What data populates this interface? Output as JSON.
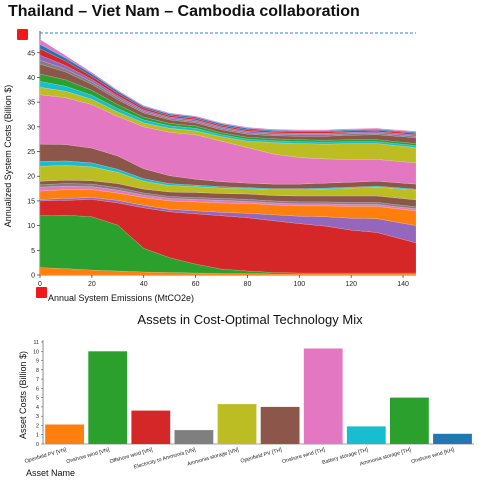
{
  "page": {
    "title": "Thailand – Viet Nam – Cambodia collaboration",
    "accent": "#f01818"
  },
  "chart_data": [
    {
      "type": "area",
      "xlabel": "Annual System Emissions (MtCO2e)",
      "ylabel": "Annualized System Costs (Billion $)",
      "xlim": [
        0,
        145
      ],
      "ylim": [
        0,
        49
      ],
      "xticks": [
        0,
        20,
        40,
        60,
        80,
        100,
        120,
        140
      ],
      "yticks": [
        0,
        5,
        10,
        15,
        20,
        25,
        30,
        35,
        40,
        45
      ],
      "reference_line": {
        "y": 49,
        "color": "#3a7fd0",
        "style": "dashed"
      },
      "x": [
        0,
        10,
        20,
        30,
        40,
        50,
        60,
        70,
        80,
        90,
        100,
        110,
        120,
        130,
        145
      ],
      "series": [
        {
          "color": "#ff7f0e",
          "values": [
            1.5,
            1.3,
            1.0,
            0.8,
            0.6,
            0.5,
            0.4,
            0.3,
            0.3,
            0.2,
            0.2,
            0.2,
            0.2,
            0.2,
            0.2
          ]
        },
        {
          "color": "#2ca02c",
          "values": [
            10.5,
            10.8,
            10.8,
            9.3,
            4.8,
            3.0,
            1.8,
            0.9,
            0.5,
            0.3,
            0.2,
            0.2,
            0.2,
            0.2,
            0.2
          ]
        },
        {
          "color": "#d62728",
          "values": [
            3.0,
            3.0,
            3.5,
            4.5,
            8.2,
            9.3,
            10.2,
            10.8,
            10.8,
            10.5,
            10.0,
            9.5,
            8.7,
            8.2,
            6.1
          ]
        },
        {
          "color": "#9467bd",
          "values": [
            0.3,
            0.4,
            0.4,
            0.5,
            0.5,
            0.5,
            0.6,
            0.7,
            0.9,
            1.2,
            1.5,
            1.9,
            2.4,
            2.8,
            3.5
          ]
        },
        {
          "color": "#ff7f0e",
          "values": [
            1.7,
            1.8,
            1.6,
            1.5,
            1.6,
            1.7,
            1.8,
            1.9,
            2.0,
            2.0,
            2.1,
            2.2,
            2.4,
            2.5,
            3.0
          ]
        },
        {
          "color": "#e377c2",
          "values": [
            0.8,
            0.7,
            0.6,
            0.6,
            0.5,
            0.5,
            0.5,
            0.5,
            0.4,
            0.4,
            0.4,
            0.4,
            0.4,
            0.4,
            0.4
          ]
        },
        {
          "color": "#7f7f7f",
          "values": [
            0.5,
            0.5,
            0.5,
            0.5,
            0.4,
            0.4,
            0.4,
            0.4,
            0.4,
            0.4,
            0.4,
            0.4,
            0.4,
            0.4,
            0.4
          ]
        },
        {
          "color": "#8c564b",
          "values": [
            0.7,
            0.7,
            0.7,
            0.8,
            0.8,
            0.9,
            1.0,
            1.0,
            1.1,
            1.1,
            1.2,
            1.2,
            1.3,
            1.3,
            1.4
          ]
        },
        {
          "color": "#bcbd22",
          "values": [
            3.0,
            3.0,
            2.8,
            2.3,
            1.6,
            1.3,
            1.2,
            1.1,
            1.1,
            1.2,
            1.3,
            1.4,
            1.6,
            1.8,
            2.0
          ]
        },
        {
          "color": "#17becf",
          "values": [
            1.0,
            0.9,
            0.8,
            0.6,
            0.5,
            0.4,
            0.3,
            0.3,
            0.2,
            0.2,
            0.2,
            0.2,
            0.2,
            0.2,
            0.2
          ]
        },
        {
          "color": "#8c564b",
          "values": [
            3.5,
            3.3,
            3.0,
            2.7,
            2.0,
            1.6,
            1.2,
            1.0,
            0.9,
            0.9,
            0.9,
            1.0,
            1.0,
            1.0,
            1.0
          ]
        },
        {
          "color": "#e377c2",
          "values": [
            10.0,
            9.5,
            8.8,
            8.0,
            8.5,
            8.8,
            9.0,
            8.2,
            7.2,
            6.1,
            5.4,
            4.9,
            4.6,
            4.4,
            4.3
          ]
        },
        {
          "color": "#bcbd22",
          "values": [
            1.5,
            1.3,
            1.1,
            0.9,
            0.8,
            0.8,
            0.8,
            0.9,
            1.3,
            2.3,
            2.8,
            3.0,
            3.2,
            3.2,
            3.1
          ]
        },
        {
          "color": "#17becf",
          "values": [
            1.2,
            1.0,
            0.8,
            0.7,
            0.6,
            0.5,
            0.5,
            0.4,
            0.4,
            0.4,
            0.4,
            0.4,
            0.4,
            0.4,
            0.4
          ]
        },
        {
          "color": "#2ca02c",
          "values": [
            1.5,
            1.3,
            1.0,
            0.8,
            0.6,
            0.5,
            0.5,
            0.4,
            0.4,
            0.4,
            0.4,
            0.4,
            0.4,
            0.4,
            0.4
          ]
        },
        {
          "color": "#8c564b",
          "values": [
            2.0,
            1.6,
            1.2,
            1.0,
            0.8,
            0.7,
            0.6,
            0.6,
            0.6,
            0.6,
            0.7,
            0.8,
            0.9,
            1.0,
            1.2
          ]
        },
        {
          "color": "#7f7f7f",
          "values": [
            0.8,
            0.6,
            0.5,
            0.4,
            0.3,
            0.3,
            0.3,
            0.3,
            0.3,
            0.3,
            0.3,
            0.3,
            0.3,
            0.3,
            0.3
          ]
        },
        {
          "color": "#9467bd",
          "values": [
            1.0,
            0.7,
            0.5,
            0.4,
            0.3,
            0.3,
            0.3,
            0.3,
            0.3,
            0.3,
            0.3,
            0.3,
            0.3,
            0.3,
            0.3
          ]
        },
        {
          "color": "#d62728",
          "values": [
            1.3,
            0.9,
            0.6,
            0.5,
            0.4,
            0.3,
            0.3,
            0.3,
            0.3,
            0.3,
            0.3,
            0.3,
            0.3,
            0.3,
            0.3
          ]
        },
        {
          "color": "#1f77b4",
          "values": [
            0.9,
            0.6,
            0.5,
            0.4,
            0.3,
            0.3,
            0.3,
            0.3,
            0.3,
            0.2,
            0.2,
            0.2,
            0.2,
            0.2,
            0.2
          ]
        },
        {
          "color": "#e377c2",
          "values": [
            1.0,
            0.5,
            0.3,
            0.2,
            0.2,
            0.2,
            0.2,
            0.2,
            0.2,
            0.2,
            0.2,
            0.2,
            0.2,
            0.2,
            0.2
          ]
        }
      ]
    },
    {
      "type": "bar",
      "title": "Assets in Cost-Optimal Technology Mix",
      "xlabel": "Asset Name",
      "ylabel": "Asset Costs (Billion $)",
      "ylim": [
        0,
        11
      ],
      "yticks": [
        0,
        1,
        2,
        3,
        4,
        5,
        6,
        7,
        8,
        9,
        10,
        11
      ],
      "categories": [
        "Openfield PV [VN]",
        "Onshore wind [VN]",
        "Offshore wind [VN]",
        "Electricity to Ammonia [VN]",
        "Ammonia storage [VN]",
        "Openfield PV [TH]",
        "Onshore wind [TH]",
        "Battery storage [TH]",
        "Ammonia storage [TH]",
        "Onshore wind [KH]"
      ],
      "values": [
        2.1,
        10.0,
        3.6,
        1.5,
        4.3,
        4.0,
        10.3,
        1.9,
        5.0,
        1.1
      ],
      "colors": [
        "#ff7f0e",
        "#2ca02c",
        "#d62728",
        "#7f7f7f",
        "#bcbd22",
        "#8c564b",
        "#e377c2",
        "#17becf",
        "#2ca02c",
        "#1f77b4"
      ]
    }
  ]
}
